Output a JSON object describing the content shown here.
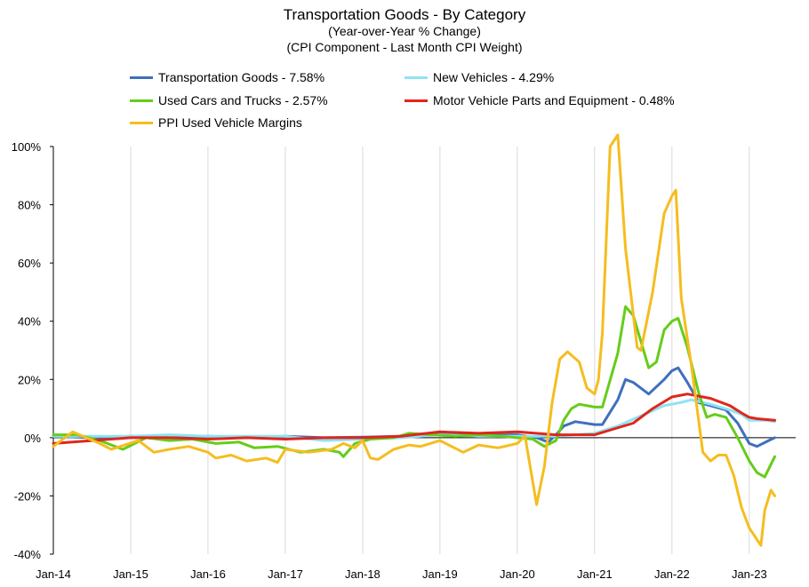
{
  "chart_data": {
    "type": "line",
    "title": "Transportation Goods - By Category",
    "subtitle_lines": [
      "(Year-over-Year % Change)",
      "(CPI Component - Last Month CPI Weight)"
    ],
    "xlabel": "",
    "ylabel": "",
    "ylim": [
      -40,
      100
    ],
    "yticks": [
      -40,
      -20,
      0,
      20,
      40,
      60,
      80,
      100
    ],
    "ytick_labels": [
      "-40%",
      "-20%",
      "0%",
      "20%",
      "40%",
      "60%",
      "80%",
      "100%"
    ],
    "xtick_labels": [
      "Jan-14",
      "Jan-15",
      "Jan-16",
      "Jan-17",
      "Jan-18",
      "Jan-19",
      "Jan-20",
      "Jan-21",
      "Jan-22",
      "Jan-23"
    ],
    "grid": "vertical",
    "legend_position": "top",
    "series": [
      {
        "name": "Transportation Goods - 7.58%",
        "color": "#3f6fbf",
        "points": [
          [
            2014.0,
            0.5
          ],
          [
            2014.5,
            0
          ],
          [
            2015.0,
            0.5
          ],
          [
            2015.5,
            0
          ],
          [
            2016.0,
            0.5
          ],
          [
            2016.5,
            0
          ],
          [
            2017.0,
            0.5
          ],
          [
            2017.5,
            0
          ],
          [
            2018.0,
            0.2
          ],
          [
            2018.5,
            0.5
          ],
          [
            2019.0,
            1.5
          ],
          [
            2019.5,
            1
          ],
          [
            2020.0,
            1
          ],
          [
            2020.25,
            0
          ],
          [
            2020.4,
            -1.5
          ],
          [
            2020.5,
            1
          ],
          [
            2020.6,
            4
          ],
          [
            2020.75,
            5.5
          ],
          [
            2021.0,
            4.5
          ],
          [
            2021.1,
            4.5
          ],
          [
            2021.3,
            13
          ],
          [
            2021.4,
            20
          ],
          [
            2021.5,
            19
          ],
          [
            2021.7,
            15
          ],
          [
            2021.9,
            20
          ],
          [
            2022.0,
            23
          ],
          [
            2022.08,
            24
          ],
          [
            2022.2,
            19
          ],
          [
            2022.35,
            12
          ],
          [
            2022.5,
            11
          ],
          [
            2022.7,
            9.5
          ],
          [
            2022.85,
            5
          ],
          [
            2023.0,
            -2
          ],
          [
            2023.1,
            -3
          ],
          [
            2023.25,
            -1
          ],
          [
            2023.33,
            0
          ]
        ]
      },
      {
        "name": "New Vehicles - 4.29%",
        "color": "#8fe3f2",
        "points": [
          [
            2014.0,
            0.5
          ],
          [
            2014.5,
            0.5
          ],
          [
            2015.0,
            0.5
          ],
          [
            2015.5,
            1
          ],
          [
            2016.0,
            0.5
          ],
          [
            2016.5,
            0.5
          ],
          [
            2017.0,
            0.5
          ],
          [
            2017.5,
            -1
          ],
          [
            2018.0,
            -0.5
          ],
          [
            2018.5,
            0
          ],
          [
            2019.0,
            1
          ],
          [
            2019.5,
            0.5
          ],
          [
            2020.0,
            0.5
          ],
          [
            2020.5,
            0.5
          ],
          [
            2020.75,
            1
          ],
          [
            2021.0,
            1.5
          ],
          [
            2021.3,
            4
          ],
          [
            2021.6,
            7.5
          ],
          [
            2021.9,
            11
          ],
          [
            2022.1,
            12
          ],
          [
            2022.25,
            13
          ],
          [
            2022.5,
            11.5
          ],
          [
            2022.75,
            9.5
          ],
          [
            2022.9,
            8
          ],
          [
            2023.0,
            6
          ],
          [
            2023.2,
            6
          ],
          [
            2023.33,
            5.5
          ]
        ]
      },
      {
        "name": "Used Cars and Trucks - 2.57%",
        "color": "#66cc1a",
        "points": [
          [
            2014.0,
            1
          ],
          [
            2014.3,
            1
          ],
          [
            2014.6,
            -1
          ],
          [
            2014.9,
            -4
          ],
          [
            2015.2,
            0
          ],
          [
            2015.5,
            -1
          ],
          [
            2015.8,
            -0.5
          ],
          [
            2016.1,
            -2
          ],
          [
            2016.4,
            -1.5
          ],
          [
            2016.6,
            -3.5
          ],
          [
            2016.9,
            -3
          ],
          [
            2017.2,
            -5
          ],
          [
            2017.5,
            -4
          ],
          [
            2017.7,
            -5
          ],
          [
            2017.75,
            -6.5
          ],
          [
            2017.9,
            -2
          ],
          [
            2018.1,
            -0.5
          ],
          [
            2018.4,
            0
          ],
          [
            2018.6,
            1.5
          ],
          [
            2018.9,
            1
          ],
          [
            2019.2,
            0.5
          ],
          [
            2019.5,
            1
          ],
          [
            2019.8,
            0.5
          ],
          [
            2020.0,
            0
          ],
          [
            2020.2,
            -0.5
          ],
          [
            2020.35,
            -3
          ],
          [
            2020.5,
            -1
          ],
          [
            2020.6,
            6
          ],
          [
            2020.7,
            10
          ],
          [
            2020.8,
            11.5
          ],
          [
            2021.0,
            10.5
          ],
          [
            2021.1,
            10.5
          ],
          [
            2021.3,
            29
          ],
          [
            2021.4,
            45
          ],
          [
            2021.5,
            42
          ],
          [
            2021.7,
            24
          ],
          [
            2021.8,
            26
          ],
          [
            2021.9,
            37
          ],
          [
            2022.0,
            40
          ],
          [
            2022.08,
            41
          ],
          [
            2022.2,
            31
          ],
          [
            2022.35,
            15
          ],
          [
            2022.45,
            7
          ],
          [
            2022.55,
            8
          ],
          [
            2022.7,
            7
          ],
          [
            2022.85,
            0
          ],
          [
            2023.0,
            -8
          ],
          [
            2023.1,
            -12
          ],
          [
            2023.2,
            -13.5
          ],
          [
            2023.33,
            -6.5
          ]
        ]
      },
      {
        "name": "Motor Vehicle Parts and Equipment - 0.48%",
        "color": "#e0261c",
        "points": [
          [
            2014.0,
            -2
          ],
          [
            2014.5,
            -1
          ],
          [
            2015.0,
            0
          ],
          [
            2015.5,
            0
          ],
          [
            2016.0,
            -0.5
          ],
          [
            2016.5,
            0
          ],
          [
            2017.0,
            -0.5
          ],
          [
            2017.5,
            0
          ],
          [
            2018.0,
            0
          ],
          [
            2018.5,
            0.5
          ],
          [
            2019.0,
            2
          ],
          [
            2019.5,
            1.5
          ],
          [
            2020.0,
            2
          ],
          [
            2020.5,
            1
          ],
          [
            2021.0,
            1
          ],
          [
            2021.25,
            3
          ],
          [
            2021.5,
            5
          ],
          [
            2021.75,
            10
          ],
          [
            2022.0,
            14
          ],
          [
            2022.2,
            15
          ],
          [
            2022.5,
            13.5
          ],
          [
            2022.75,
            11
          ],
          [
            2022.9,
            8.5
          ],
          [
            2023.0,
            7
          ],
          [
            2023.1,
            6.5
          ],
          [
            2023.33,
            6
          ]
        ]
      },
      {
        "name": "PPI Used Vehicle Margins",
        "color": "#f5bd1f",
        "points": [
          [
            2014.0,
            -3
          ],
          [
            2014.25,
            2
          ],
          [
            2014.6,
            -2
          ],
          [
            2014.75,
            -4
          ],
          [
            2015.1,
            -1
          ],
          [
            2015.3,
            -5
          ],
          [
            2015.5,
            -4
          ],
          [
            2015.75,
            -3
          ],
          [
            2016.0,
            -5
          ],
          [
            2016.1,
            -7
          ],
          [
            2016.3,
            -6
          ],
          [
            2016.5,
            -8
          ],
          [
            2016.75,
            -7
          ],
          [
            2016.9,
            -8.5
          ],
          [
            2017.0,
            -4
          ],
          [
            2017.3,
            -5
          ],
          [
            2017.6,
            -4
          ],
          [
            2017.75,
            -2
          ],
          [
            2017.9,
            -3.5
          ],
          [
            2018.0,
            -1
          ],
          [
            2018.1,
            -7
          ],
          [
            2018.2,
            -7.5
          ],
          [
            2018.4,
            -4
          ],
          [
            2018.6,
            -2.5
          ],
          [
            2018.75,
            -3
          ],
          [
            2019.0,
            -1
          ],
          [
            2019.3,
            -5
          ],
          [
            2019.5,
            -2.5
          ],
          [
            2019.75,
            -3.5
          ],
          [
            2020.0,
            -2
          ],
          [
            2020.1,
            0.5
          ],
          [
            2020.25,
            -23
          ],
          [
            2020.35,
            -10
          ],
          [
            2020.45,
            12
          ],
          [
            2020.55,
            27
          ],
          [
            2020.65,
            29.5
          ],
          [
            2020.8,
            26
          ],
          [
            2020.9,
            17
          ],
          [
            2021.0,
            15
          ],
          [
            2021.05,
            20
          ],
          [
            2021.1,
            36
          ],
          [
            2021.2,
            100
          ],
          [
            2021.3,
            104
          ],
          [
            2021.4,
            65
          ],
          [
            2021.55,
            31
          ],
          [
            2021.6,
            30
          ],
          [
            2021.75,
            50
          ],
          [
            2021.9,
            77
          ],
          [
            2022.0,
            83
          ],
          [
            2022.05,
            85
          ],
          [
            2022.12,
            48
          ],
          [
            2022.25,
            25
          ],
          [
            2022.4,
            -5
          ],
          [
            2022.5,
            -8
          ],
          [
            2022.6,
            -6
          ],
          [
            2022.7,
            -6
          ],
          [
            2022.8,
            -13
          ],
          [
            2022.9,
            -24
          ],
          [
            2023.0,
            -31
          ],
          [
            2023.1,
            -35
          ],
          [
            2023.15,
            -37
          ],
          [
            2023.2,
            -25
          ],
          [
            2023.28,
            -18
          ],
          [
            2023.33,
            -20
          ]
        ]
      }
    ]
  }
}
